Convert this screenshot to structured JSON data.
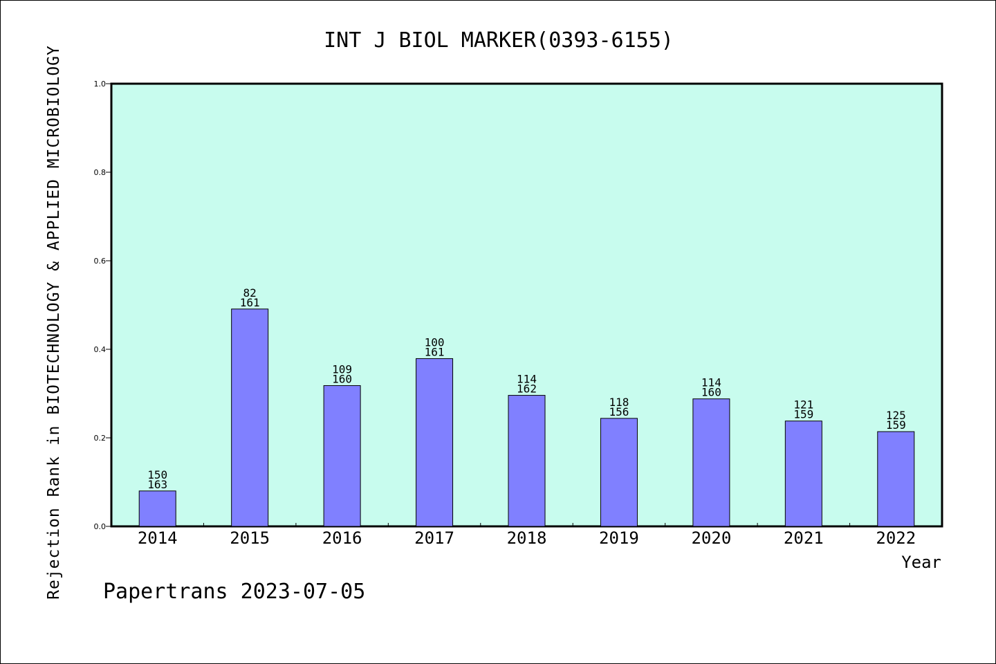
{
  "chart_data": {
    "type": "bar",
    "title": "INT J BIOL MARKER(0393-6155)",
    "ylabel": "Rejection Rank in BIOTECHNOLOGY & APPLIED MICROBIOLOGY",
    "xlabel": "Year",
    "categories": [
      "2014",
      "2015",
      "2016",
      "2017",
      "2018",
      "2019",
      "2020",
      "2021",
      "2022"
    ],
    "values": [
      0.08,
      0.491,
      0.318,
      0.379,
      0.296,
      0.244,
      0.288,
      0.238,
      0.214
    ],
    "ranks": [
      "150",
      "82",
      "109",
      "100",
      "114",
      "118",
      "114",
      "121",
      "125"
    ],
    "totals": [
      "163",
      "161",
      "160",
      "161",
      "162",
      "156",
      "160",
      "159",
      "159"
    ],
    "ylim": [
      0,
      1.0
    ],
    "yticks": [
      "0.0",
      "0.2",
      "0.4",
      "0.6",
      "0.8",
      "1.0"
    ],
    "grid": false,
    "colors": {
      "plot_bg": "#c8fcee",
      "bar_fill": "#8080ff",
      "bar_stroke": "#000000"
    }
  },
  "footer": "Papertrans 2023-07-05"
}
